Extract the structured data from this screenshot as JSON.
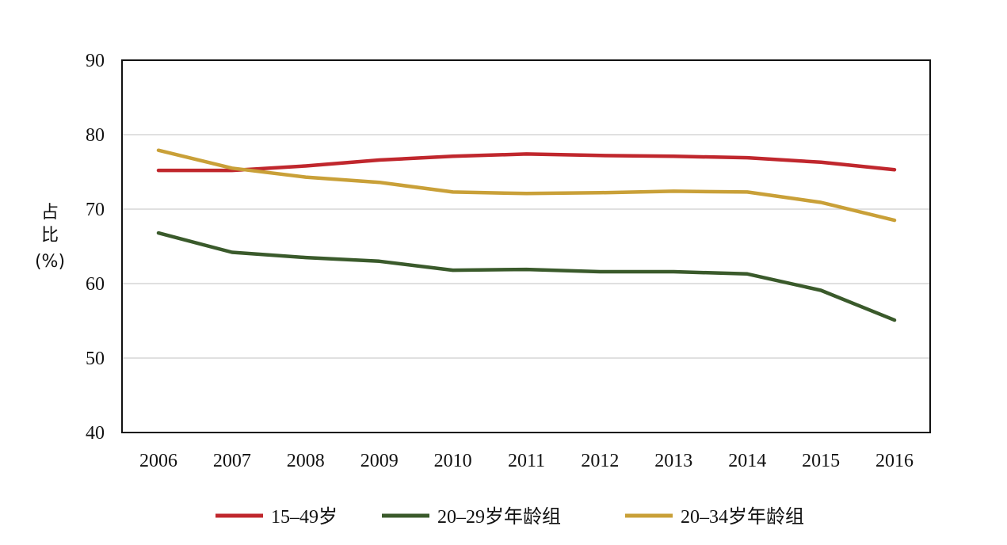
{
  "chart_data": {
    "type": "line",
    "title": "",
    "xlabel": "",
    "ylabel_lines": [
      "占",
      "比",
      "(%)"
    ],
    "x": [
      "2006",
      "2007",
      "2008",
      "2009",
      "2010",
      "2011",
      "2012",
      "2013",
      "2014",
      "2015",
      "2016"
    ],
    "ylim": [
      40,
      90
    ],
    "yticks": [
      "40",
      "50",
      "60",
      "70",
      "80",
      "90"
    ],
    "grid": true,
    "legend_position": "bottom",
    "series": [
      {
        "name": "15–49岁",
        "color": "#c0272d",
        "values": [
          75.2,
          75.2,
          75.8,
          76.6,
          77.1,
          77.4,
          77.2,
          77.1,
          76.9,
          76.3,
          75.3
        ]
      },
      {
        "name": "20–29岁年龄组",
        "color": "#3a5a2b",
        "values": [
          66.8,
          64.2,
          63.5,
          63.0,
          61.8,
          61.9,
          61.6,
          61.6,
          61.3,
          59.1,
          55.1
        ]
      },
      {
        "name": "20–34岁年龄组",
        "color": "#c9a038",
        "values": [
          77.9,
          75.5,
          74.3,
          73.6,
          72.3,
          72.1,
          72.2,
          72.4,
          72.3,
          70.9,
          68.5
        ]
      }
    ]
  }
}
